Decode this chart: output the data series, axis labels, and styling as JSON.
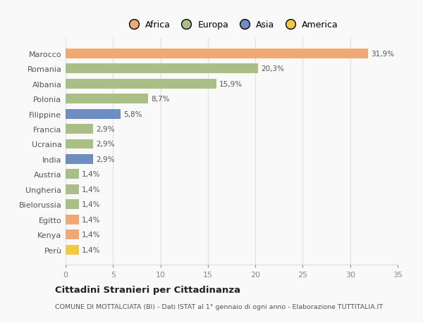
{
  "categories": [
    "Marocco",
    "Romania",
    "Albania",
    "Polonia",
    "Filippine",
    "Francia",
    "Ucraina",
    "India",
    "Austria",
    "Ungheria",
    "Bielorussia",
    "Egitto",
    "Kenya",
    "Perù"
  ],
  "values": [
    31.9,
    20.3,
    15.9,
    8.7,
    5.8,
    2.9,
    2.9,
    2.9,
    1.4,
    1.4,
    1.4,
    1.4,
    1.4,
    1.4
  ],
  "labels": [
    "31,9%",
    "20,3%",
    "15,9%",
    "8,7%",
    "5,8%",
    "2,9%",
    "2,9%",
    "2,9%",
    "1,4%",
    "1,4%",
    "1,4%",
    "1,4%",
    "1,4%",
    "1,4%"
  ],
  "colors": [
    "#F0A875",
    "#AABF87",
    "#AABF87",
    "#AABF87",
    "#6E8DC0",
    "#AABF87",
    "#AABF87",
    "#6E8DC0",
    "#AABF87",
    "#AABF87",
    "#AABF87",
    "#F0A875",
    "#F0A875",
    "#F5C842"
  ],
  "continent_colors": {
    "Africa": "#F0A875",
    "Europa": "#AABF87",
    "Asia": "#6E8DC0",
    "America": "#F5C842"
  },
  "xlim": [
    0,
    35
  ],
  "xticks": [
    0,
    5,
    10,
    15,
    20,
    25,
    30,
    35
  ],
  "title": "Cittadini Stranieri per Cittadinanza",
  "subtitle": "COMUNE DI MOTTALCIATA (BI) - Dati ISTAT al 1° gennaio di ogni anno - Elaborazione TUTTITALIA.IT",
  "background_color": "#f9f9f9",
  "bar_height": 0.65,
  "grid_color": "#e0e0e0"
}
